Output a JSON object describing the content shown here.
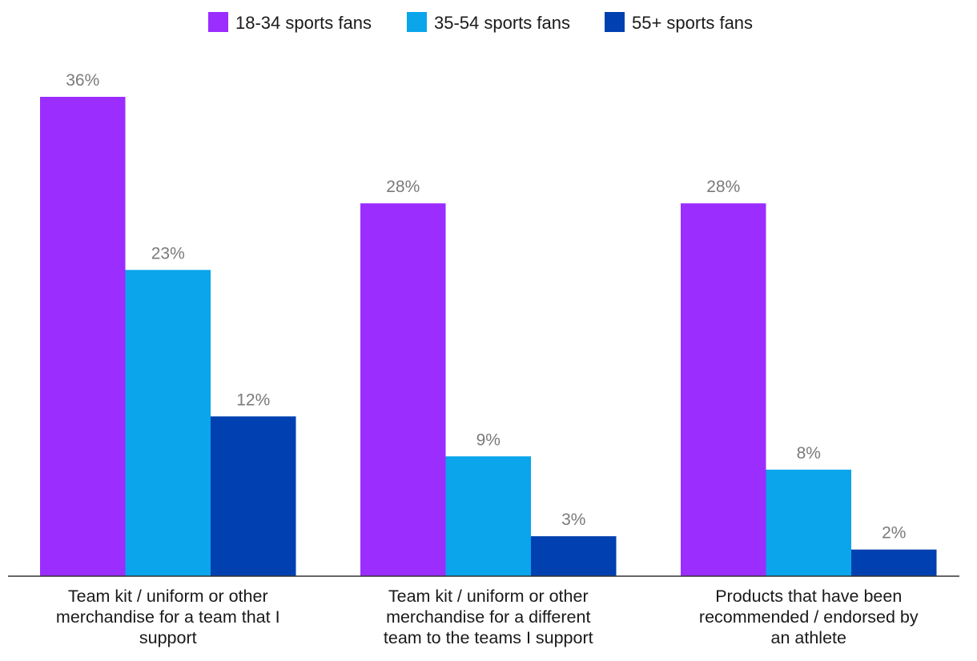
{
  "chart_data": {
    "type": "bar",
    "title": "",
    "xlabel": "",
    "ylabel": "",
    "ylim": [
      0,
      36
    ],
    "grid": false,
    "legend_position": "top-center",
    "categories": [
      [
        "Team kit / uniform or other",
        "merchandise for a team that I",
        "support"
      ],
      [
        "Team kit / uniform or other",
        "merchandise for a different",
        "team to the teams I support"
      ],
      [
        "Products that have been",
        "recommended / endorsed by",
        "an athlete"
      ]
    ],
    "series": [
      {
        "name": "18-34 sports fans",
        "color": "#9b2dff",
        "values": [
          36,
          28,
          28
        ],
        "labels": [
          "36%",
          "28%",
          "28%"
        ]
      },
      {
        "name": "35-54 sports fans",
        "color": "#0aa5eb",
        "values": [
          23,
          9,
          8
        ],
        "labels": [
          "23%",
          "9%",
          "8%"
        ]
      },
      {
        "name": "55+ sports fans",
        "color": "#0040b0",
        "values": [
          12,
          3,
          2
        ],
        "labels": [
          "12%",
          "3%",
          "2%"
        ]
      }
    ]
  }
}
